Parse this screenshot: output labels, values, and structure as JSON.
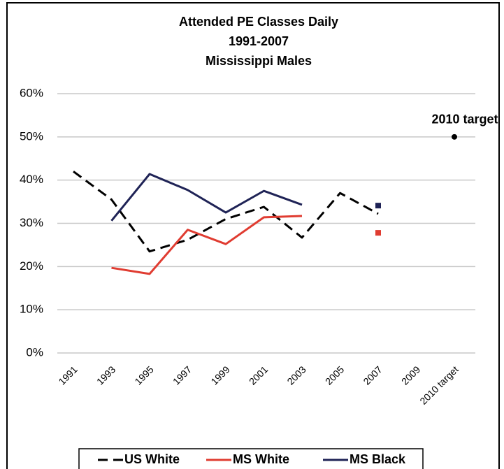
{
  "chart_data": {
    "type": "line",
    "title": [
      "Attended PE Classes Daily",
      "1991-2007",
      "Mississippi Males"
    ],
    "categories": [
      "1991",
      "1993",
      "1995",
      "1997",
      "1999",
      "2001",
      "2003",
      "2005",
      "2007",
      "2009",
      "2010 target"
    ],
    "series": [
      {
        "name": "US White",
        "color": "#000000",
        "dash": "dashed",
        "values": [
          42,
          35.5,
          23.5,
          26.2,
          31,
          33.8,
          26.7,
          37,
          32.2,
          null,
          null
        ]
      },
      {
        "name": "MS White",
        "color": "#e03c31",
        "dash": "solid",
        "values": [
          null,
          19.7,
          18.3,
          28.5,
          25.2,
          31.4,
          31.7,
          null,
          27.8,
          null,
          null
        ]
      },
      {
        "name": "MS Black",
        "color": "#1f2356",
        "dash": "solid",
        "values": [
          null,
          30.6,
          41.4,
          37.7,
          32.5,
          37.5,
          34.3,
          null,
          34.1,
          null,
          null
        ]
      }
    ],
    "target": {
      "label": "2010 target",
      "value": 50,
      "color": "#000000"
    },
    "ylim": [
      0,
      60
    ],
    "yticks": [
      {
        "value": 0,
        "label": "0%"
      },
      {
        "value": 10,
        "label": "10%"
      },
      {
        "value": 20,
        "label": "20%"
      },
      {
        "value": 30,
        "label": "30%"
      },
      {
        "value": 40,
        "label": "40%"
      },
      {
        "value": 50,
        "label": "50%"
      },
      {
        "value": 60,
        "label": "60%"
      }
    ],
    "grid": true,
    "legend": "bottom"
  }
}
